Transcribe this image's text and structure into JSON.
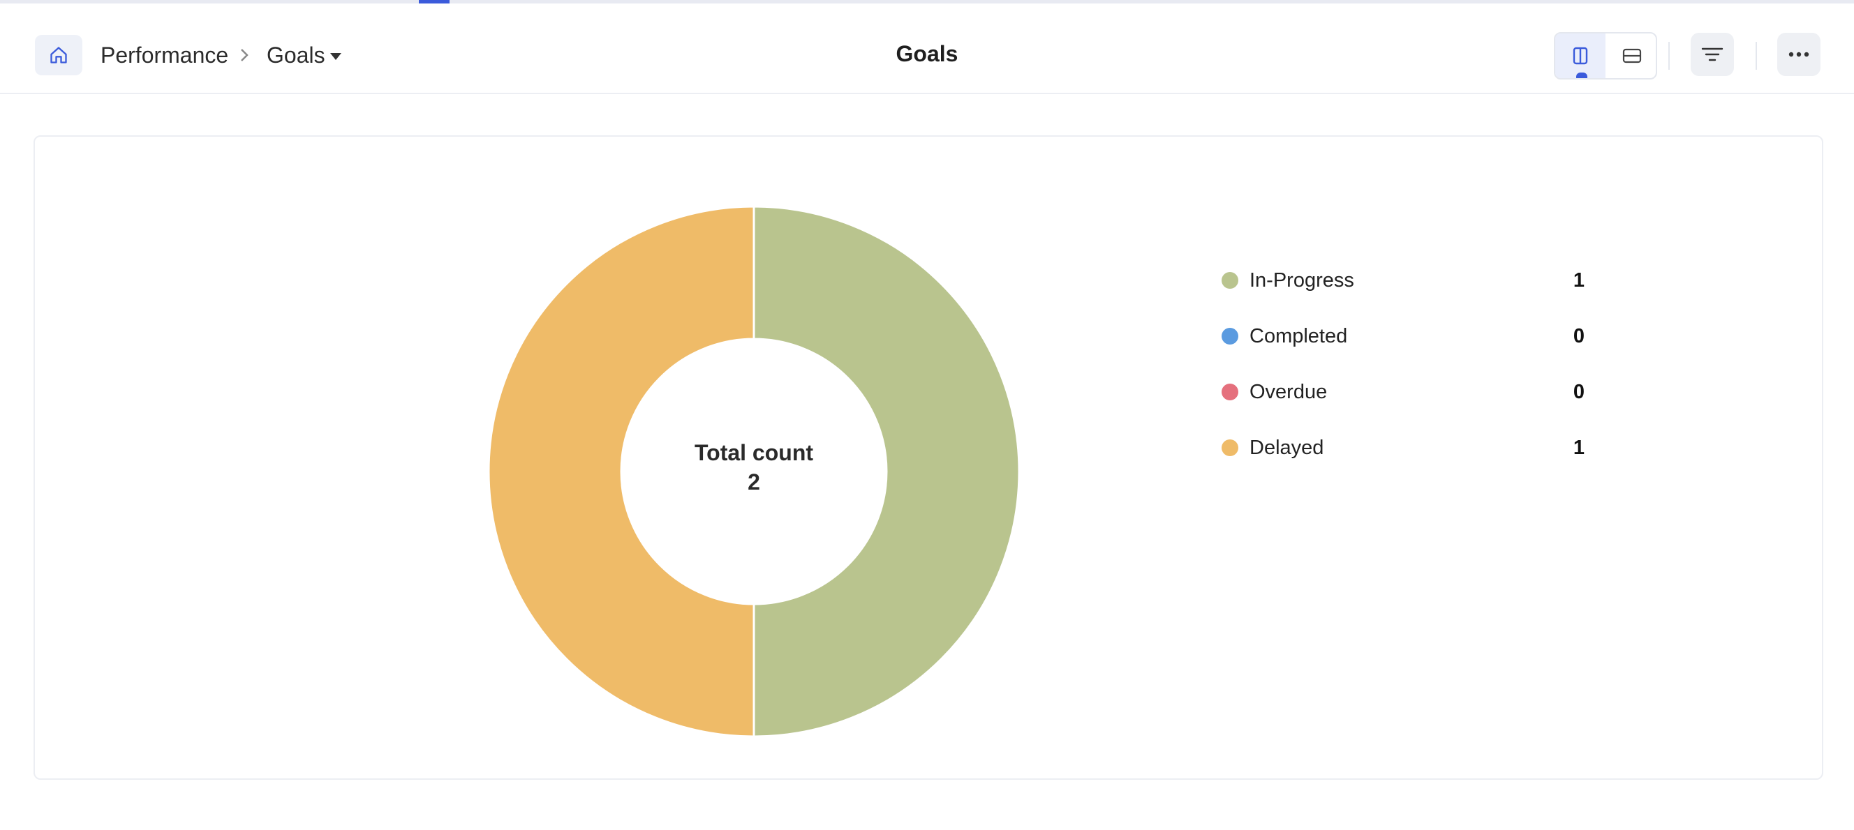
{
  "breadcrumb": {
    "home_icon": "home-icon",
    "items": [
      "Performance",
      "Goals"
    ],
    "separator_icon": "chevron-right-icon",
    "dropdown_icon": "caret-down-icon"
  },
  "page_title": "Goals",
  "toolbar": {
    "view_icons": [
      "split-vertical-icon",
      "split-horizontal-icon"
    ],
    "active_view": "split-vertical",
    "filter_icon": "filter-icon",
    "more_icon": "more-horizontal-icon"
  },
  "chart_data": {
    "type": "pie",
    "donut": true,
    "center_label": "Total count",
    "center_value": "2",
    "categories": [
      "In-Progress",
      "Completed",
      "Overdue",
      "Delayed"
    ],
    "values": [
      1,
      0,
      0,
      1
    ],
    "colors": [
      "#b9c48e",
      "#5b9be0",
      "#e5707d",
      "#efbb68"
    ],
    "legend_position": "right"
  }
}
